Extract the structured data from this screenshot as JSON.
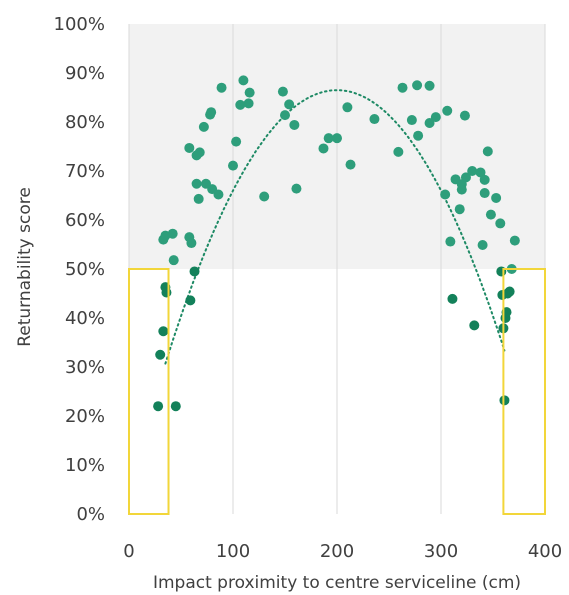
{
  "chart_data": {
    "type": "scatter",
    "title": "",
    "xlabel": "Impact proximity to centre serviceline  (cm)",
    "ylabel": "Returnability score",
    "xlim": [
      0,
      400
    ],
    "ylim": [
      0,
      1
    ],
    "x_ticks": [
      0,
      100,
      200,
      300,
      400
    ],
    "x_tick_labels": [
      "0",
      "100",
      "200",
      "300",
      "400"
    ],
    "y_ticks": [
      0,
      0.1,
      0.2,
      0.3,
      0.4,
      0.5,
      0.6,
      0.7,
      0.8,
      0.9,
      1.0
    ],
    "y_tick_labels": [
      "0%",
      "10%",
      "20%",
      "30%",
      "40%",
      "50%",
      "60%",
      "70%",
      "80%",
      "90%",
      "100%"
    ],
    "grid": "vertical",
    "background_band": {
      "y_from": 0.5,
      "y_to": 1.0,
      "color": "#f2f2f2"
    },
    "highlight_boxes": [
      {
        "x_from": 0,
        "x_to": 38,
        "y_from": 0,
        "y_to": 0.5,
        "color": "#f2d63a"
      },
      {
        "x_from": 360,
        "x_to": 400,
        "y_from": 0,
        "y_to": 0.5,
        "color": "#f2d63a"
      }
    ],
    "trendline": {
      "style": "dotted",
      "color": "#1e8a65",
      "x_from": 35,
      "x_to": 362,
      "coeffs": [
        -2.05e-05,
        0.0082,
        0.045
      ]
    },
    "series": [
      {
        "color_above": "#2e9e7b",
        "color_below": "#13815a",
        "points": [
          [
            28,
            0.22
          ],
          [
            30,
            0.325
          ],
          [
            33,
            0.373
          ],
          [
            35,
            0.463
          ],
          [
            36,
            0.452
          ],
          [
            33,
            0.56
          ],
          [
            35,
            0.568
          ],
          [
            42,
            0.572
          ],
          [
            45,
            0.22
          ],
          [
            43,
            0.518
          ],
          [
            58,
            0.565
          ],
          [
            60,
            0.553
          ],
          [
            58,
            0.747
          ],
          [
            59,
            0.436
          ],
          [
            63,
            0.495
          ],
          [
            65,
            0.674
          ],
          [
            65,
            0.732
          ],
          [
            68,
            0.738
          ],
          [
            67,
            0.643
          ],
          [
            72,
            0.79
          ],
          [
            74,
            0.674
          ],
          [
            78,
            0.815
          ],
          [
            79,
            0.82
          ],
          [
            80,
            0.663
          ],
          [
            86,
            0.652
          ],
          [
            89,
            0.87
          ],
          [
            100,
            0.711
          ],
          [
            103,
            0.76
          ],
          [
            107,
            0.835
          ],
          [
            110,
            0.885
          ],
          [
            115,
            0.838
          ],
          [
            116,
            0.86
          ],
          [
            130,
            0.648
          ],
          [
            148,
            0.862
          ],
          [
            150,
            0.814
          ],
          [
            154,
            0.836
          ],
          [
            159,
            0.794
          ],
          [
            161,
            0.664
          ],
          [
            187,
            0.746
          ],
          [
            192,
            0.767
          ],
          [
            200,
            0.767
          ],
          [
            210,
            0.83
          ],
          [
            213,
            0.713
          ],
          [
            236,
            0.806
          ],
          [
            259,
            0.739
          ],
          [
            263,
            0.87
          ],
          [
            272,
            0.804
          ],
          [
            277,
            0.875
          ],
          [
            278,
            0.772
          ],
          [
            289,
            0.874
          ],
          [
            289,
            0.798
          ],
          [
            295,
            0.81
          ],
          [
            304,
            0.652
          ],
          [
            306,
            0.823
          ],
          [
            309,
            0.556
          ],
          [
            311,
            0.439
          ],
          [
            314,
            0.683
          ],
          [
            318,
            0.622
          ],
          [
            320,
            0.673
          ],
          [
            320,
            0.662
          ],
          [
            323,
            0.813
          ],
          [
            324,
            0.687
          ],
          [
            330,
            0.7
          ],
          [
            332,
            0.385
          ],
          [
            338,
            0.697
          ],
          [
            340,
            0.549
          ],
          [
            342,
            0.655
          ],
          [
            342,
            0.682
          ],
          [
            345,
            0.74
          ],
          [
            348,
            0.611
          ],
          [
            353,
            0.645
          ],
          [
            357,
            0.593
          ],
          [
            358,
            0.495
          ],
          [
            359,
            0.447
          ],
          [
            360,
            0.379
          ],
          [
            361,
            0.232
          ],
          [
            362,
            0.4
          ],
          [
            363,
            0.412
          ],
          [
            364,
            0.45
          ],
          [
            366,
            0.454
          ],
          [
            368,
            0.5
          ],
          [
            371,
            0.558
          ]
        ]
      }
    ]
  }
}
